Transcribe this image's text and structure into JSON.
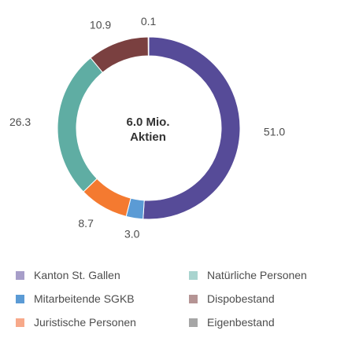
{
  "chart_data": {
    "type": "pie",
    "donut": true,
    "center_label": [
      "6.0 Mio.",
      "Aktien"
    ],
    "categories": [
      "Kanton St. Gallen",
      "Mitarbeitende SGKB",
      "Juristische Personen",
      "Natürliche Personen",
      "Dispobestand",
      "Eigenbestand"
    ],
    "values": [
      51.0,
      3.0,
      8.7,
      26.3,
      10.9,
      0.1
    ],
    "value_labels": [
      "51.0",
      "3.0",
      "8.7",
      "26.3",
      "10.9",
      "0.1"
    ],
    "slice_colors": [
      "#564b98",
      "#5b9bd5",
      "#f47a30",
      "#5fada3",
      "#7a4040",
      "#8a8a8a"
    ],
    "legend_colors": [
      "#a79ec9",
      "#5b9bd5",
      "#f7a98a",
      "#a9d4cf",
      "#b59494",
      "#a6a6a6"
    ],
    "legend_placement": "bottom"
  }
}
